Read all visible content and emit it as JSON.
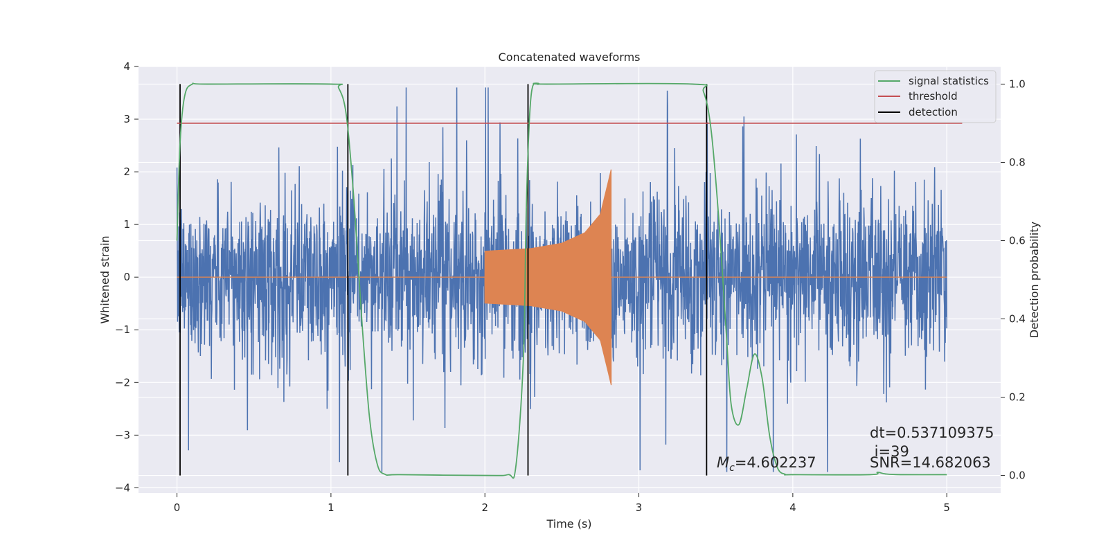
{
  "chart_data": {
    "type": "line",
    "title": "Concatenated waveforms",
    "xlabel": "Time (s)",
    "ylabel_left": "Whitened strain",
    "ylabel_right": "Detection probability",
    "xlim": [
      -0.25,
      5.35
    ],
    "ylim_left": [
      -4.1,
      4.0
    ],
    "ylim_right": [
      -0.045,
      1.045
    ],
    "x_ticks": [
      0,
      1,
      2,
      3,
      4,
      5
    ],
    "x_tick_labels": [
      "0",
      "1",
      "2",
      "3",
      "4",
      "5"
    ],
    "y_left_ticks": [
      4,
      3,
      2,
      1,
      0,
      -1,
      -2,
      -3,
      -4
    ],
    "y_left_tick_labels": [
      "4",
      "3",
      "2",
      "1",
      "0",
      "−1",
      "−2",
      "−3",
      "−4"
    ],
    "y_right_ticks": [
      1.0,
      0.8,
      0.6,
      0.4,
      0.2,
      0.0
    ],
    "y_right_tick_labels": [
      "1.0",
      "0.8",
      "0.6",
      "0.4",
      "0.2",
      "0.0"
    ],
    "grid": true,
    "legend_position": "top-right",
    "series": [
      {
        "name": "whitened strain",
        "axis": "left",
        "color": "#4c72b0",
        "description": "noise-like whitened strain sampled over 0 to 5 s, amplitude mostly within ±2 with spikes to about ±3.6",
        "x_range": [
          0,
          5
        ],
        "amplitude_range": [
          -3.7,
          3.6
        ]
      },
      {
        "name": "injected waveform",
        "axis": "left",
        "color": "#dd8452",
        "description": "zero except a chirp from 2.0 s to 2.82 s growing from ±0.5 to about ±2.05",
        "x": [
          2.0,
          2.3,
          2.5,
          2.65,
          2.75,
          2.8,
          2.82
        ],
        "envelope": [
          0.5,
          0.55,
          0.65,
          0.85,
          1.2,
          1.8,
          2.05
        ]
      },
      {
        "name": "signal statistics",
        "axis": "right",
        "color": "#55a868",
        "x": [
          0.0,
          0.02,
          0.05,
          0.1,
          0.2,
          1.0,
          1.05,
          1.1,
          1.15,
          1.2,
          1.25,
          1.3,
          1.35,
          1.45,
          2.0,
          2.15,
          2.2,
          2.25,
          2.27,
          2.3,
          2.35,
          2.4,
          3.35,
          3.42,
          3.47,
          3.52,
          3.57,
          3.6,
          3.65,
          3.7,
          3.75,
          3.8,
          3.85,
          3.9,
          3.95,
          4.0,
          4.5,
          4.55,
          4.6,
          4.7,
          5.0
        ],
        "values": [
          0.6,
          0.85,
          0.97,
          1.0,
          1.0,
          1.0,
          0.99,
          0.92,
          0.7,
          0.4,
          0.15,
          0.03,
          0.003,
          0.002,
          0.0,
          0.002,
          0.02,
          0.3,
          0.7,
          0.97,
          1.0,
          1.0,
          1.0,
          0.98,
          0.88,
          0.65,
          0.35,
          0.18,
          0.13,
          0.22,
          0.31,
          0.25,
          0.1,
          0.02,
          0.003,
          0.002,
          0.002,
          0.008,
          0.004,
          0.002,
          0.002
        ]
      },
      {
        "name": "threshold",
        "axis": "right",
        "color": "#c44e52",
        "x": [
          0.0,
          5.1
        ],
        "values": [
          0.9,
          0.9
        ]
      },
      {
        "name": "detection",
        "axis": "right",
        "color": "#000000",
        "vertical_lines_x": [
          0.02,
          1.11,
          2.28,
          3.44
        ],
        "y_range": [
          0.0,
          1.0
        ]
      }
    ],
    "annotations": [
      {
        "text": "dt=0.537109375",
        "x": 4.5,
        "y_prob": 0.11
      },
      {
        "text": " i=39",
        "x": 4.5,
        "y_prob": 0.06
      },
      {
        "text": "SNR=14.682063",
        "x": 4.5,
        "y_prob": 0.03
      },
      {
        "text_italic": "M",
        "text_sub": "c",
        "text_rest": "=4.602237",
        "x": 3.5,
        "y_prob": 0.03
      }
    ]
  }
}
